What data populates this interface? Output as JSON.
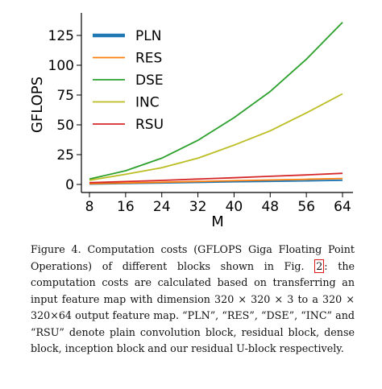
{
  "chart_data": {
    "type": "line",
    "xlabel": "M",
    "ylabel": "GFLOPS",
    "xlim": [
      8,
      64
    ],
    "ylim": [
      0,
      140
    ],
    "xticks": [
      8,
      16,
      24,
      32,
      40,
      48,
      56,
      64
    ],
    "yticks": [
      0,
      25,
      50,
      75,
      100,
      125
    ],
    "x": [
      8,
      16,
      24,
      32,
      40,
      48,
      56,
      64
    ],
    "grid": false,
    "legend_position": "top-left",
    "series": [
      {
        "name": "PLN",
        "color": "#1f77b4",
        "values": [
          0.3,
          0.8,
          1.2,
          1.7,
          2.2,
          2.6,
          3.0,
          3.5
        ]
      },
      {
        "name": "RES",
        "color": "#ff7f0e",
        "values": [
          0.6,
          1.2,
          1.8,
          2.5,
          3.1,
          3.7,
          4.3,
          5.0
        ]
      },
      {
        "name": "DSE",
        "color": "#2ca02c",
        "values": [
          4.5,
          11.5,
          22,
          37,
          56,
          78,
          105,
          136
        ]
      },
      {
        "name": "INC",
        "color": "#bcbd22",
        "values": [
          3.5,
          8.5,
          14,
          22,
          33,
          45,
          60,
          76
        ]
      },
      {
        "name": "RSU",
        "color": "#d62728",
        "values": [
          1.5,
          2.4,
          3.4,
          4.5,
          5.6,
          6.8,
          8.0,
          9.3
        ]
      }
    ]
  },
  "caption": {
    "part1": "Figure 4. Computation costs (GFLOPS Giga Floating Point Operations) of different blocks shown in Fig. ",
    "ref": "2",
    "part2": ": the computation costs are calculated based on transferring an input feature map with dimension 320 × 320 × 3 to a 320 × 320×64 output feature map. “PLN”, “RES”, “DSE”, “INC” and “RSU” denote plain convolution block, residual block, dense block, inception block and our residual U-block respectively."
  }
}
